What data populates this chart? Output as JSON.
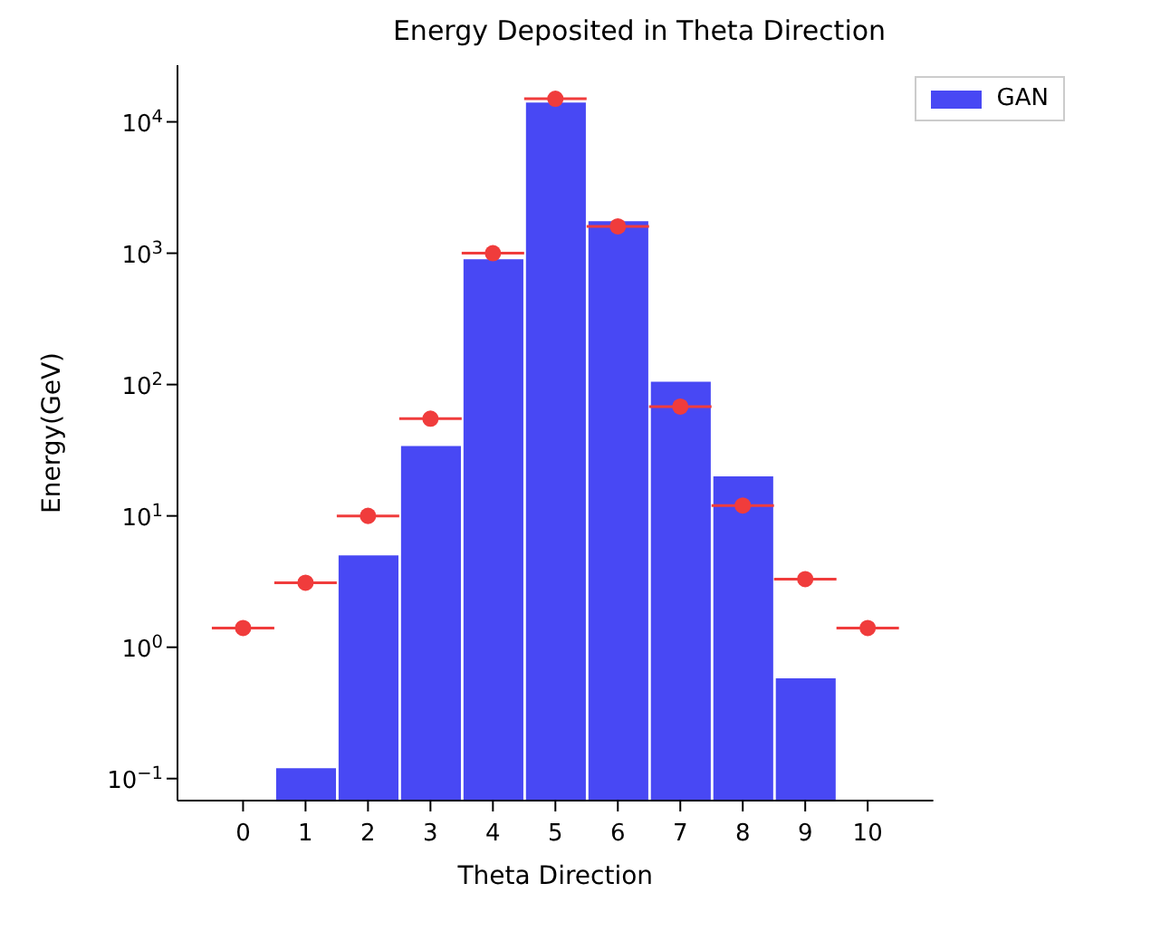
{
  "chart_data": {
    "type": "bar",
    "title": "Energy Deposited in Theta Direction",
    "xlabel": "Theta Direction",
    "ylabel": "Energy(GeV)",
    "x": [
      0,
      1,
      2,
      3,
      4,
      5,
      6,
      7,
      8,
      9,
      10
    ],
    "xlim": [
      -1.05,
      11.05
    ],
    "xticks": [
      0,
      1,
      2,
      3,
      4,
      5,
      6,
      7,
      8,
      9,
      10
    ],
    "ylim": [
      0.068,
      27000
    ],
    "yticks": [
      {
        "value": 0.1,
        "label": "10$^{−1}$"
      },
      {
        "value": 1,
        "label": "10$^{0}$"
      },
      {
        "value": 10,
        "label": "10$^{1}$"
      },
      {
        "value": 100,
        "label": "10$^{2}$"
      },
      {
        "value": 1000,
        "label": "10$^{3}$"
      },
      {
        "value": 10000,
        "label": "10$^{4}$"
      }
    ],
    "log": "y",
    "grid": false,
    "legend": "top right",
    "series": [
      {
        "name": "GAN",
        "color": "#4848f4",
        "values": [
          null,
          0.12,
          5,
          34,
          900,
          14000,
          1750,
          105,
          20,
          0.58,
          null
        ]
      },
      {
        "type": "scatter",
        "color": "#f03c3c",
        "marker": "circle",
        "values": [
          1.4,
          3.1,
          10,
          55,
          1000,
          15000,
          1600,
          68,
          12,
          3.3,
          1.4
        ],
        "xerrors": [
          0.5,
          0.5,
          0.5,
          0.5,
          0.5,
          0.5,
          0.5,
          0.5,
          0.5,
          0.5,
          0.5
        ]
      }
    ]
  }
}
